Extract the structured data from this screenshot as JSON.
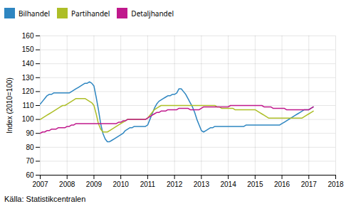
{
  "chart_data": {
    "type": "line",
    "ylabel": "Index (2010=100)",
    "source": "Källa: Statistikcentralen",
    "xlim": [
      2007.0,
      2018.0
    ],
    "xticks": [
      2007,
      2008,
      2009,
      2010,
      2011,
      2012,
      2013,
      2014,
      2015,
      2016,
      2017,
      2018
    ],
    "ylim": [
      60,
      160
    ],
    "yticks": [
      60,
      70,
      80,
      90,
      100,
      110,
      120,
      130,
      140,
      150,
      160
    ],
    "grid": true,
    "legend": "upper left",
    "x": [
      2007.0,
      2007.083,
      2007.167,
      2007.25,
      2007.333,
      2007.417,
      2007.5,
      2007.583,
      2007.667,
      2007.75,
      2007.833,
      2007.917,
      2008.0,
      2008.083,
      2008.167,
      2008.25,
      2008.333,
      2008.417,
      2008.5,
      2008.583,
      2008.667,
      2008.75,
      2008.833,
      2008.917,
      2009.0,
      2009.083,
      2009.167,
      2009.25,
      2009.333,
      2009.417,
      2009.5,
      2009.583,
      2009.667,
      2009.75,
      2009.833,
      2009.917,
      2010.0,
      2010.083,
      2010.167,
      2010.25,
      2010.333,
      2010.417,
      2010.5,
      2010.583,
      2010.667,
      2010.75,
      2010.833,
      2010.917,
      2011.0,
      2011.083,
      2011.167,
      2011.25,
      2011.333,
      2011.417,
      2011.5,
      2011.583,
      2011.667,
      2011.75,
      2011.833,
      2011.917,
      2012.0,
      2012.083,
      2012.167,
      2012.25,
      2012.333,
      2012.417,
      2012.5,
      2012.583,
      2012.667,
      2012.75,
      2012.833,
      2012.917,
      2013.0,
      2013.083,
      2013.167,
      2013.25,
      2013.333,
      2013.417,
      2013.5,
      2013.583,
      2013.667,
      2013.75,
      2013.833,
      2013.917,
      2014.0,
      2014.083,
      2014.167,
      2014.25,
      2014.333,
      2014.417,
      2014.5,
      2014.583,
      2014.667,
      2014.75,
      2014.833,
      2014.917,
      2015.0,
      2015.083,
      2015.167,
      2015.25,
      2015.333,
      2015.417,
      2015.5,
      2015.583,
      2015.667,
      2015.75,
      2015.833,
      2015.917,
      2016.0,
      2016.083,
      2016.167,
      2016.25,
      2016.333,
      2016.417,
      2016.5,
      2016.583,
      2016.667,
      2016.75,
      2016.833,
      2016.917,
      2017.0,
      2017.083,
      2017.167
    ],
    "series": [
      {
        "name": "Bilhandel",
        "color": "#2E86C1",
        "values": [
          111,
          113,
          115,
          117,
          118,
          118,
          119,
          119,
          119,
          119,
          119,
          119,
          119,
          119,
          120,
          121,
          122,
          123,
          124,
          125,
          126,
          126,
          127,
          126,
          124,
          116,
          107,
          97,
          90,
          86,
          84,
          84,
          85,
          86,
          87,
          88,
          89,
          90,
          92,
          93,
          94,
          94,
          95,
          95,
          95,
          95,
          95,
          95,
          96,
          100,
          104,
          108,
          111,
          113,
          114,
          115,
          116,
          117,
          117,
          118,
          118,
          119,
          122,
          122,
          120,
          118,
          115,
          112,
          109,
          105,
          100,
          96,
          92,
          91,
          92,
          93,
          94,
          94,
          95,
          95,
          95,
          95,
          95,
          95,
          95,
          95,
          95,
          95,
          95,
          95,
          95,
          95,
          96,
          96,
          96,
          96,
          96,
          96,
          96,
          96,
          96,
          96,
          96,
          96,
          96,
          96,
          96,
          96,
          97,
          98,
          99,
          100,
          101,
          102,
          103,
          104,
          105,
          106,
          107,
          107,
          107,
          108,
          109
        ]
      },
      {
        "name": "Partihandel",
        "color": "#ADBE27",
        "values": [
          100,
          101,
          102,
          103,
          104,
          105,
          106,
          107,
          108,
          109,
          110,
          110,
          111,
          112,
          113,
          114,
          115,
          115,
          115,
          115,
          115,
          114,
          113,
          112,
          110,
          104,
          97,
          93,
          91,
          91,
          91,
          92,
          93,
          94,
          95,
          96,
          97,
          98,
          99,
          100,
          100,
          100,
          100,
          100,
          100,
          100,
          100,
          100,
          101,
          103,
          105,
          107,
          108,
          109,
          110,
          110,
          110,
          110,
          110,
          110,
          110,
          110,
          110,
          110,
          110,
          110,
          110,
          110,
          110,
          110,
          110,
          110,
          110,
          110,
          110,
          110,
          110,
          110,
          110,
          109,
          109,
          108,
          108,
          108,
          108,
          108,
          108,
          107,
          107,
          107,
          107,
          107,
          107,
          107,
          107,
          107,
          107,
          106,
          105,
          104,
          103,
          102,
          101,
          101,
          101,
          101,
          101,
          101,
          101,
          101,
          101,
          101,
          101,
          101,
          101,
          101,
          101,
          101,
          102,
          103,
          104,
          105,
          106
        ]
      },
      {
        "name": "Detaljhandel",
        "color": "#C0188C",
        "values": [
          90,
          91,
          91,
          92,
          92,
          93,
          93,
          93,
          94,
          94,
          94,
          94,
          95,
          95,
          96,
          96,
          97,
          97,
          97,
          97,
          97,
          97,
          97,
          97,
          97,
          97,
          97,
          97,
          97,
          97,
          97,
          97,
          97,
          97,
          97,
          98,
          98,
          99,
          99,
          100,
          100,
          100,
          100,
          100,
          100,
          100,
          100,
          100,
          101,
          102,
          103,
          104,
          105,
          105,
          106,
          106,
          106,
          107,
          107,
          107,
          107,
          107,
          108,
          108,
          108,
          108,
          108,
          107,
          107,
          107,
          107,
          107,
          108,
          109,
          109,
          109,
          109,
          109,
          109,
          109,
          109,
          109,
          109,
          109,
          109,
          110,
          110,
          110,
          110,
          110,
          110,
          110,
          110,
          110,
          110,
          110,
          110,
          110,
          110,
          110,
          109,
          109,
          109,
          109,
          108,
          108,
          108,
          108,
          108,
          108,
          107,
          107,
          107,
          107,
          107,
          107,
          107,
          107,
          107,
          107,
          107,
          108,
          109
        ]
      }
    ]
  }
}
